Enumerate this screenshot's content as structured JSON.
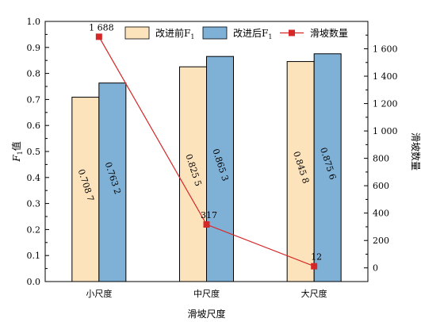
{
  "chart_data": {
    "type": "bar+line",
    "xlabel": "滑坡尺度",
    "categories": [
      "小尺度",
      "中尺度",
      "大尺度"
    ],
    "y_left": {
      "label_base": "F",
      "label_sub": "1",
      "label_suffix": "值",
      "lim": [
        0,
        1.0
      ],
      "ticks": [
        "0.0",
        "0.1",
        "0.2",
        "0.3",
        "0.4",
        "0.5",
        "0.6",
        "0.7",
        "0.8",
        "0.9",
        "1.0"
      ]
    },
    "y_right": {
      "label": "滑坡数量",
      "lim": [
        -100,
        1800
      ],
      "ticks": [
        "0",
        "200",
        "400",
        "600",
        "800",
        "1 000",
        "1 200",
        "1 400",
        "1 600"
      ]
    },
    "series": [
      {
        "name_base": "改进前F",
        "name_sub": "1",
        "type": "bar",
        "axis": "left",
        "color": "#fde3bb",
        "values": [
          0.7087,
          0.8255,
          0.8458
        ],
        "labels": [
          "0.708 7",
          "0.825 5",
          "0.845 8"
        ]
      },
      {
        "name_base": "改进后F",
        "name_sub": "1",
        "type": "bar",
        "axis": "left",
        "color": "#7fb1d7",
        "values": [
          0.7632,
          0.8653,
          0.8756
        ],
        "labels": [
          "0.763 2",
          "0.865 3",
          "0.875 6"
        ]
      },
      {
        "name": "滑坡数量",
        "type": "line",
        "axis": "right",
        "color": "#d62728",
        "values": [
          1688,
          317,
          12
        ],
        "labels": [
          "1 688",
          "317",
          "12"
        ]
      }
    ],
    "legend": "top"
  }
}
